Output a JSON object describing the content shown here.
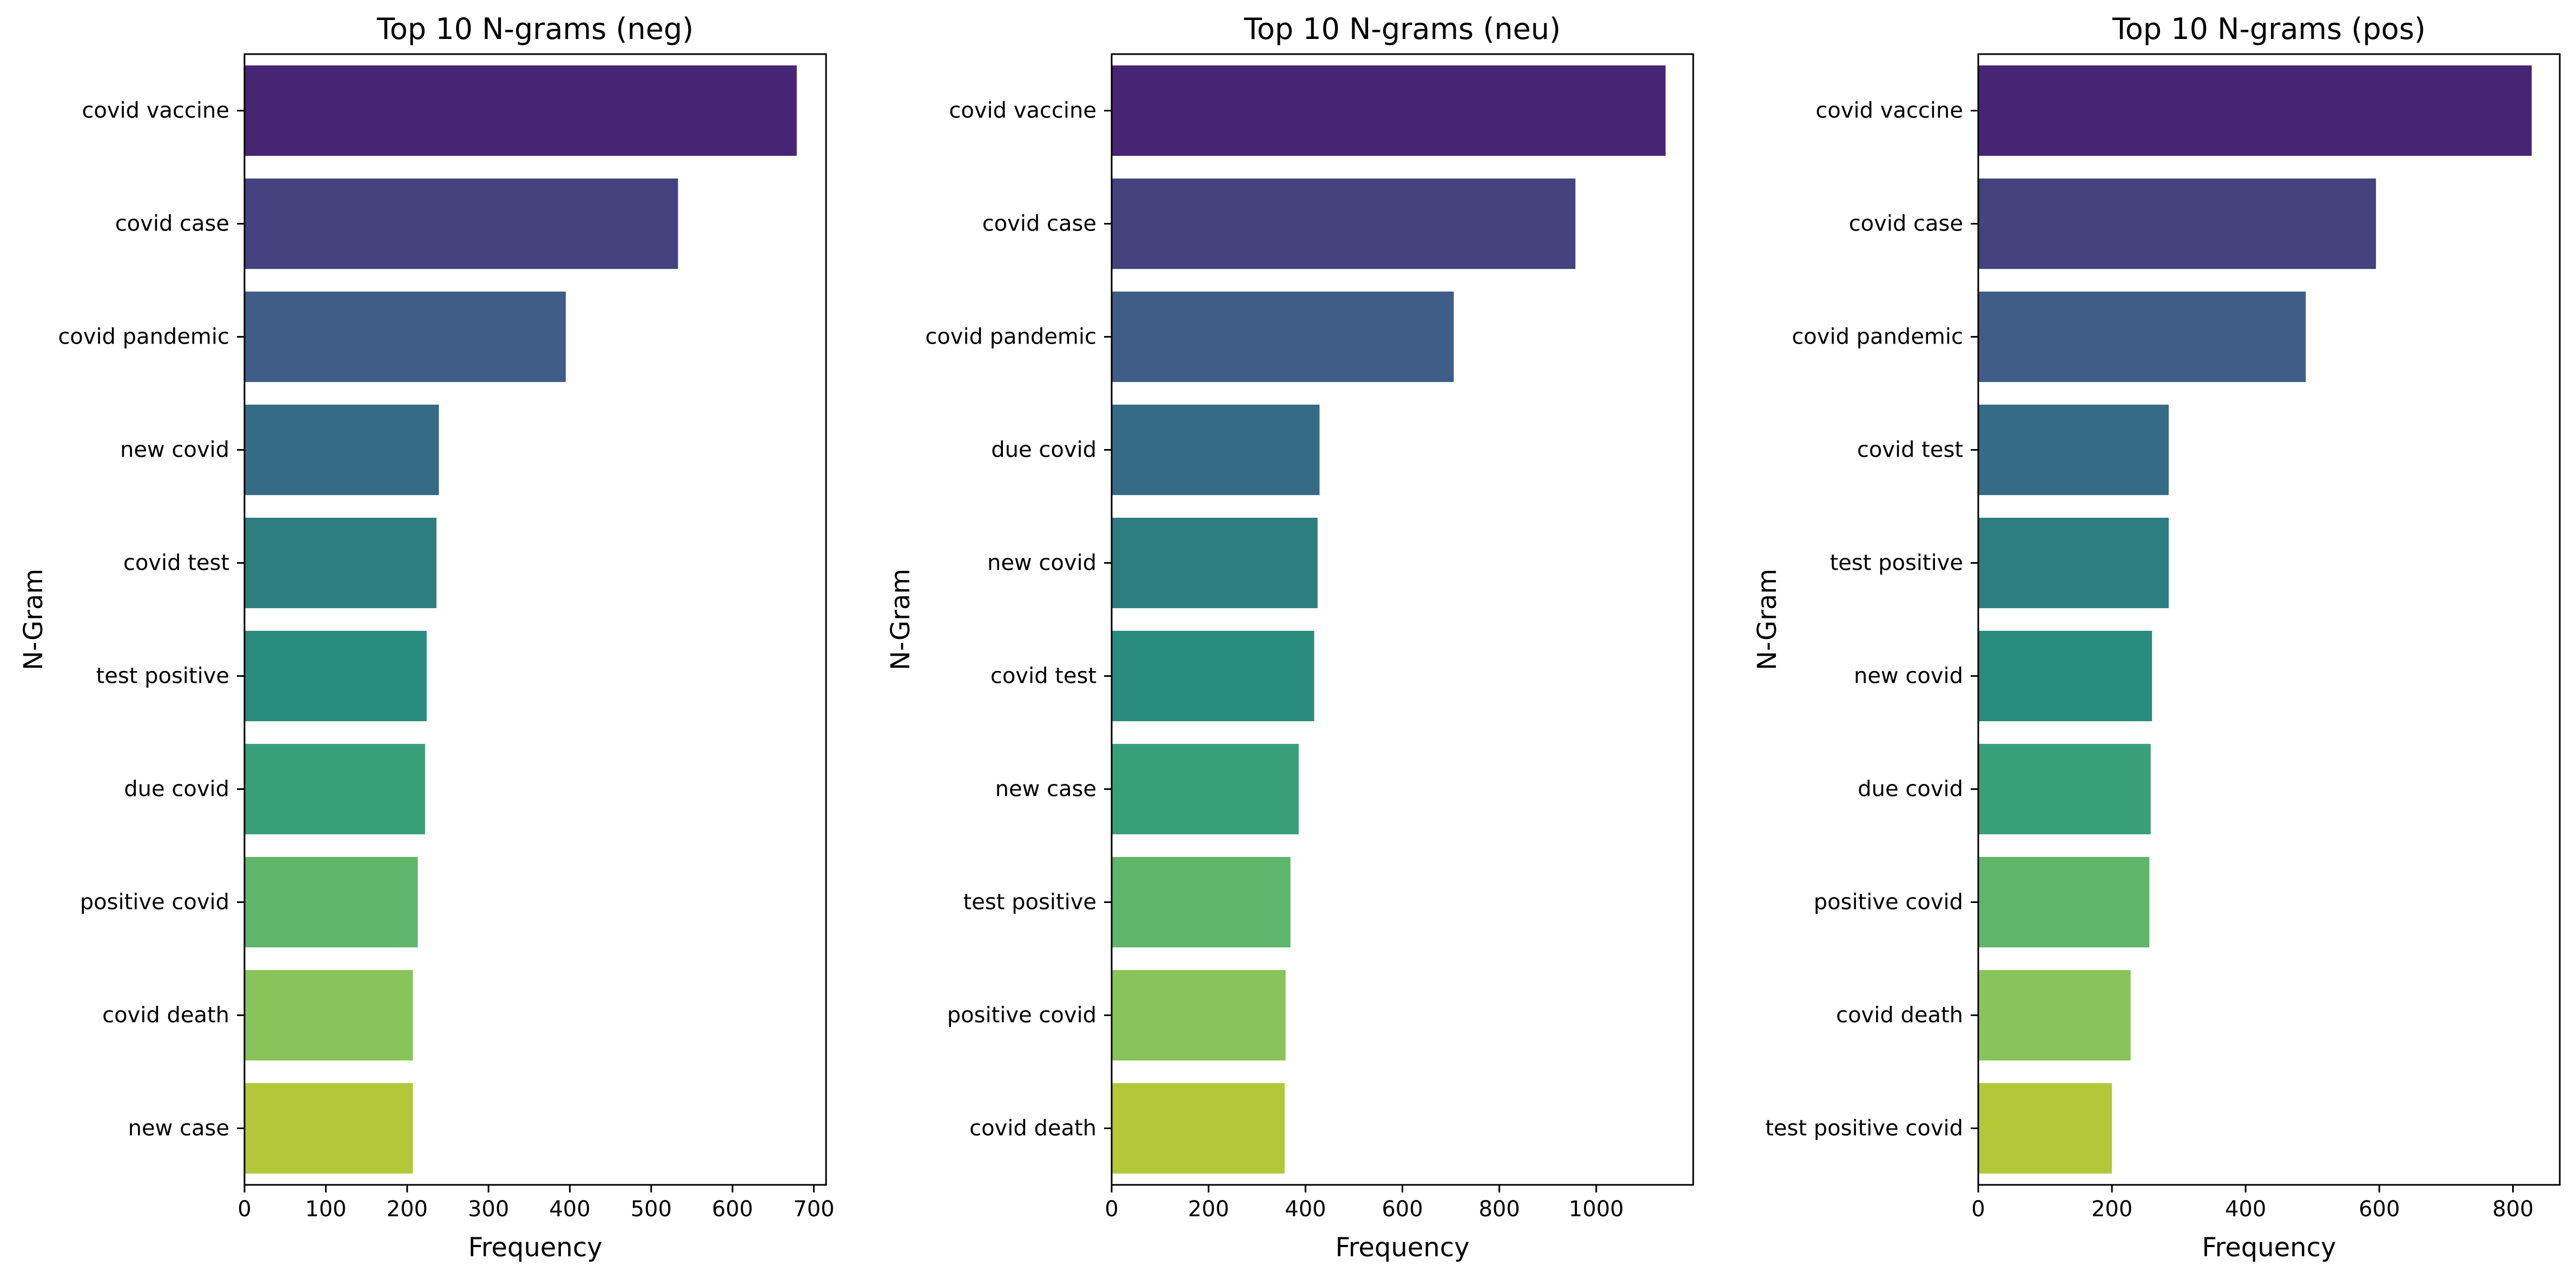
{
  "chart_data": [
    {
      "type": "bar",
      "orientation": "horizontal",
      "title": "Top 10 N-grams (neg)",
      "xlabel": "Frequency",
      "ylabel": "N-Gram",
      "categories": [
        "covid vaccine",
        "covid case",
        "covid pandemic",
        "new covid",
        "covid test",
        "test positive",
        "due covid",
        "positive covid",
        "covid death",
        "new case"
      ],
      "values": [
        679,
        533,
        395,
        239,
        236,
        224,
        222,
        213,
        207,
        207
      ],
      "xlim": [
        0,
        715
      ],
      "xticks": [
        0,
        100,
        200,
        300,
        400,
        500,
        600,
        700
      ],
      "grid": false
    },
    {
      "type": "bar",
      "orientation": "horizontal",
      "title": "Top 10 N-grams (neu)",
      "xlabel": "Frequency",
      "ylabel": "N-Gram",
      "categories": [
        "covid vaccine",
        "covid case",
        "covid pandemic",
        "due covid",
        "new covid",
        "covid test",
        "new case",
        "test positive",
        "positive covid",
        "covid death"
      ],
      "values": [
        1143,
        957,
        706,
        429,
        425,
        418,
        386,
        369,
        359,
        357
      ],
      "xlim": [
        0,
        1200
      ],
      "xticks": [
        0,
        200,
        400,
        600,
        800,
        1000
      ],
      "grid": false
    },
    {
      "type": "bar",
      "orientation": "horizontal",
      "title": "Top 10 N-grams (pos)",
      "xlabel": "Frequency",
      "ylabel": "N-Gram",
      "categories": [
        "covid vaccine",
        "covid case",
        "covid pandemic",
        "covid test",
        "test positive",
        "new covid",
        "due covid",
        "positive covid",
        "covid death",
        "test positive covid"
      ],
      "values": [
        828,
        595,
        490,
        285,
        285,
        260,
        258,
        256,
        228,
        200
      ],
      "xlim": [
        0,
        870
      ],
      "xticks": [
        0,
        200,
        400,
        600,
        800
      ],
      "grid": false
    }
  ],
  "palette": [
    "#482475",
    "#46427f",
    "#3f5d86",
    "#366b86",
    "#2e7d80",
    "#2a8c7d",
    "#389f7b",
    "#5db66a",
    "#89c45b",
    "#b2c838"
  ]
}
